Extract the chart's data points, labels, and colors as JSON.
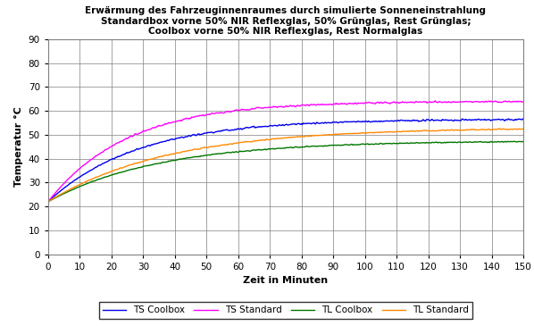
{
  "title_line1": "Erwärmung des Fahrzeuginnenraumes durch simulierte Sonneneinstrahlung",
  "title_line2": "Standardbox vorne 50% NIR Reflexglas, 50% Grünglas, Rest Grünglas;",
  "title_line3": "Coolbox vorne 50% NIR Reflexglas, Rest Normalglas",
  "xlabel": "Zeit in Minuten",
  "ylabel": "Temperatur °C",
  "xlim": [
    0,
    150
  ],
  "ylim": [
    0,
    90
  ],
  "xticks": [
    0,
    10,
    20,
    30,
    40,
    50,
    60,
    70,
    80,
    90,
    100,
    110,
    120,
    130,
    140,
    150
  ],
  "yticks": [
    0,
    10,
    20,
    30,
    40,
    50,
    60,
    70,
    80,
    90
  ],
  "series": {
    "TS_Coolbox": {
      "label": "TS Coolbox",
      "color": "#0000EE",
      "start": 22.0,
      "plateau": 56.5,
      "tau": 28,
      "noise": 0.5
    },
    "TS_Standard": {
      "label": "TS Standard",
      "color": "#FF00FF",
      "start": 22.0,
      "plateau": 64.0,
      "tau": 25,
      "noise": 0.5
    },
    "TL_Coolbox": {
      "label": "TL Coolbox",
      "color": "#007700",
      "start": 22.0,
      "plateau": 47.5,
      "tau": 35,
      "noise": 0.3
    },
    "TL_Standard": {
      "label": "TL Standard",
      "color": "#FF8800",
      "start": 22.0,
      "plateau": 53.0,
      "tau": 38,
      "noise": 0.3
    }
  },
  "background_color": "#FFFFFF",
  "grid_color": "#808080",
  "title_fontsize": 7.5,
  "axis_label_fontsize": 8,
  "tick_fontsize": 7.5,
  "legend_fontsize": 7.5,
  "figsize": [
    5.98,
    3.65
  ],
  "dpi": 100
}
